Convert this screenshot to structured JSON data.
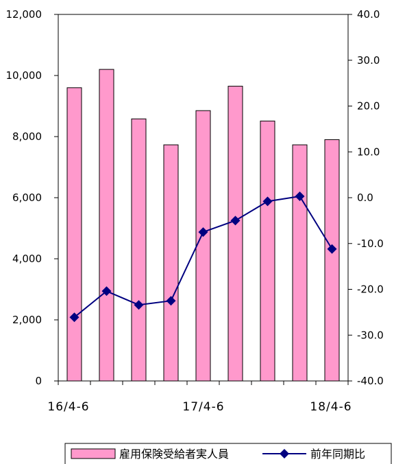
{
  "chart_data": {
    "type": "bar+line",
    "categories": [
      "16/4-6",
      "",
      "",
      "",
      "17/4-6",
      "",
      "",
      "",
      "18/4-6"
    ],
    "series": [
      {
        "name": "雇用保険受給者実人員",
        "type": "bar",
        "axis": "left",
        "color": "#ff99cc",
        "values": [
          9600,
          10200,
          8580,
          7730,
          8850,
          9650,
          8510,
          7730,
          7900
        ]
      },
      {
        "name": "前年同期比",
        "type": "line",
        "axis": "right",
        "color": "#000080",
        "values": [
          -26.1,
          -20.4,
          -23.4,
          -22.5,
          -7.5,
          -5.0,
          -0.8,
          0.3,
          -11.2
        ]
      }
    ],
    "y_left": {
      "min": 0,
      "max": 12000,
      "step": 2000,
      "tick_labels": [
        "0",
        "2,000",
        "4,000",
        "6,000",
        "8,000",
        "10,000",
        "12,000"
      ]
    },
    "y_right": {
      "min": -40,
      "max": 40,
      "step": 10,
      "tick_labels": [
        "-40.0",
        "-30.0",
        "-20.0",
        "-10.0",
        "0.0",
        "10.0",
        "20.0",
        "30.0",
        "40.0"
      ]
    },
    "x_tick_labels": [
      "16/4-6",
      "17/4-6",
      "18/4-6"
    ],
    "grid": false,
    "legend_position": "bottom"
  }
}
